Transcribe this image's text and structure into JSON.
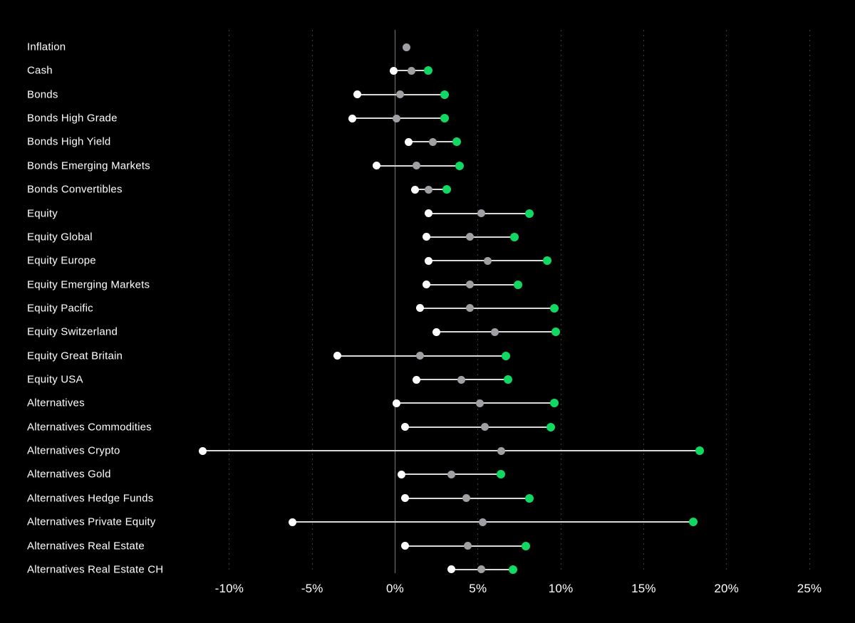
{
  "chart_data": {
    "type": "dumbbell_range",
    "title": "",
    "unit": "%",
    "background": "#000000",
    "legend": "none",
    "grid": "vertical dotted lines at each tick, solid line at 0%",
    "x_axis": {
      "min": -12.6,
      "max": 26.1,
      "ticks": [
        {
          "value": -10,
          "label": "-10%"
        },
        {
          "value": -5,
          "label": "-5%"
        },
        {
          "value": 0,
          "label": "0%"
        },
        {
          "value": 5,
          "label": "5%"
        },
        {
          "value": 10,
          "label": "10%"
        },
        {
          "value": 15,
          "label": "15%"
        },
        {
          "value": 20,
          "label": "20%"
        },
        {
          "value": 25,
          "label": "25%"
        }
      ]
    },
    "marker_roles": {
      "min": {
        "name": "low-estimate-dot",
        "color": "#ffffff"
      },
      "mid": {
        "name": "mid-estimate-dot",
        "color": "#9fa0a4"
      },
      "max": {
        "name": "high-estimate-dot",
        "color": "#10d862"
      }
    },
    "rows": [
      {
        "label": "Inflation",
        "min": null,
        "mid": 0.7,
        "max": null
      },
      {
        "label": "Cash",
        "min": -0.1,
        "mid": 1.0,
        "max": 2.0
      },
      {
        "label": "Bonds",
        "min": -2.3,
        "mid": 0.3,
        "max": 3.0
      },
      {
        "label": "Bonds High Grade",
        "min": -2.6,
        "mid": 0.1,
        "max": 3.0
      },
      {
        "label": "Bonds High Yield",
        "min": 0.8,
        "mid": 2.3,
        "max": 3.7
      },
      {
        "label": "Bonds Emerging Markets",
        "min": -1.1,
        "mid": 1.3,
        "max": 3.9
      },
      {
        "label": "Bonds Convertibles",
        "min": 1.2,
        "mid": 2.0,
        "max": 3.1
      },
      {
        "label": "Equity",
        "min": 2.0,
        "mid": 5.2,
        "max": 8.1
      },
      {
        "label": "Equity Global",
        "min": 1.9,
        "mid": 4.5,
        "max": 7.2
      },
      {
        "label": "Equity Europe",
        "min": 2.0,
        "mid": 5.6,
        "max": 9.2
      },
      {
        "label": "Equity Emerging Markets",
        "min": 1.9,
        "mid": 4.5,
        "max": 7.4
      },
      {
        "label": "Equity Pacific",
        "min": 1.5,
        "mid": 4.5,
        "max": 9.6
      },
      {
        "label": "Equity Switzerland",
        "min": 2.5,
        "mid": 6.0,
        "max": 9.7
      },
      {
        "label": "Equity Great Britain",
        "min": -3.5,
        "mid": 1.5,
        "max": 6.7
      },
      {
        "label": "Equity USA",
        "min": 1.3,
        "mid": 4.0,
        "max": 6.8
      },
      {
        "label": "Alternatives",
        "min": 0.1,
        "mid": 5.1,
        "max": 9.6
      },
      {
        "label": "Alternatives Commodities",
        "min": 0.6,
        "mid": 5.4,
        "max": 9.4
      },
      {
        "label": "Alternatives Crypto",
        "min": -11.6,
        "mid": 6.4,
        "max": 18.4
      },
      {
        "label": "Alternatives Gold",
        "min": 0.4,
        "mid": 3.4,
        "max": 6.4
      },
      {
        "label": "Alternatives Hedge Funds",
        "min": 0.6,
        "mid": 4.3,
        "max": 8.1
      },
      {
        "label": "Alternatives Private Equity",
        "min": -6.2,
        "mid": 5.3,
        "max": 18.0
      },
      {
        "label": "Alternatives Real Estate",
        "min": 0.6,
        "mid": 4.4,
        "max": 7.9
      },
      {
        "label": "Alternatives Real Estate CH",
        "min": 3.4,
        "mid": 5.2,
        "max": 7.1
      }
    ]
  },
  "colors": {
    "background": "#000000",
    "label_text": "#ffffff",
    "tick_text": "#ffffff",
    "grid": "#3e3e42",
    "zero_line": "#7a7a7e",
    "range_line": "#d9d9d9",
    "min_dot": "#ffffff",
    "mid_dot": "#9fa0a4",
    "max_dot": "#10d862"
  }
}
